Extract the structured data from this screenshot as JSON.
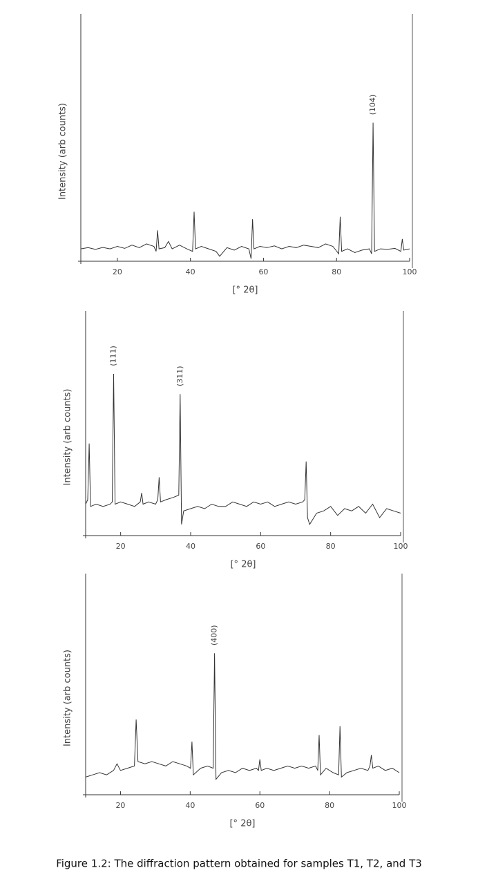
{
  "chart_data": [
    {
      "type": "line",
      "x_label": "[° 2θ]",
      "y_label": "Intensity (arb counts)",
      "color": "#333333",
      "xlim": [
        10,
        100
      ],
      "ylim": [
        0,
        100
      ],
      "xticks": [
        20,
        40,
        60,
        80,
        100
      ],
      "x": [
        10,
        12,
        14,
        16,
        18,
        20,
        22,
        24,
        26,
        28,
        30,
        30.6,
        31,
        31.4,
        33,
        34,
        35,
        37,
        39,
        40.6,
        41,
        41.4,
        43,
        45,
        47,
        48,
        50,
        52,
        54,
        56,
        56.6,
        57,
        57.4,
        59,
        61,
        63,
        65,
        67,
        69,
        71,
        73,
        75,
        77,
        79,
        80.6,
        81,
        81.4,
        83,
        85,
        87,
        89,
        89.6,
        90,
        90.4,
        92,
        94,
        96,
        97.6,
        98,
        98.4,
        100
      ],
      "values": [
        5,
        5.5,
        4.8,
        5.6,
        5,
        6,
        5.2,
        6.5,
        5.5,
        7,
        6,
        4,
        12.5,
        5,
        5.5,
        8,
        5,
        6.5,
        5,
        4,
        20,
        5,
        6,
        5,
        4,
        2,
        5.5,
        4.5,
        6,
        5,
        1,
        17,
        5,
        6,
        5.5,
        6.2,
        5,
        6,
        5.5,
        6.5,
        6,
        5.5,
        7,
        6,
        3,
        18,
        4,
        5,
        3.5,
        4.5,
        5,
        3,
        56,
        4,
        5,
        4.8,
        5.2,
        4,
        9,
        4.5,
        5
      ],
      "annotations": [
        {
          "text": "(104)",
          "x": 90,
          "y": 56
        }
      ]
    },
    {
      "type": "line",
      "x_label": "[° 2θ]",
      "y_label": "Intensity (arb counts)",
      "color": "#333333",
      "xlim": [
        10,
        100
      ],
      "ylim": [
        0,
        100
      ],
      "xticks": [
        20,
        40,
        60,
        80,
        100
      ],
      "x": [
        10,
        10.6,
        11,
        11.4,
        13,
        15,
        17,
        17.6,
        18,
        18.4,
        20,
        22,
        24,
        25.6,
        26,
        26.4,
        28,
        30,
        30.6,
        31,
        31.4,
        33,
        35,
        36.6,
        37,
        37.4,
        38,
        40,
        42,
        44,
        46,
        48,
        50,
        52,
        54,
        56,
        58,
        60,
        62,
        64,
        66,
        68,
        70,
        72,
        72.6,
        73,
        73.4,
        74,
        76,
        78,
        80,
        82,
        84,
        86,
        88,
        90,
        92,
        94,
        96,
        98,
        100
      ],
      "values": [
        14,
        16,
        41,
        13,
        14,
        13,
        14,
        15,
        72,
        14,
        15,
        14,
        13,
        15,
        19,
        14,
        15,
        14,
        16,
        26,
        15,
        16,
        17,
        18,
        63,
        5,
        11,
        12,
        13,
        12,
        14,
        13,
        13,
        15,
        14,
        13,
        15,
        14,
        15,
        13,
        14,
        15,
        14,
        15,
        16,
        33,
        8,
        5,
        10,
        11,
        13,
        9,
        12,
        11,
        13,
        10,
        14,
        8,
        12,
        11,
        10
      ],
      "annotations": [
        {
          "text": "(111)",
          "x": 18,
          "y": 72
        },
        {
          "text": "(311)",
          "x": 37,
          "y": 63
        }
      ]
    },
    {
      "type": "line",
      "x_label": "[° 2θ]",
      "y_label": "Intensity (arb counts)",
      "color": "#333333",
      "xlim": [
        10,
        100
      ],
      "ylim": [
        0,
        100
      ],
      "xticks": [
        20,
        40,
        60,
        80,
        100
      ],
      "x": [
        10,
        12,
        14,
        16,
        18,
        19,
        20,
        22,
        24,
        24.5,
        25,
        27,
        29,
        31,
        33,
        35,
        37,
        39,
        40.1,
        40.5,
        40.9,
        43,
        45,
        46.6,
        47,
        47.4,
        49,
        51,
        53,
        55,
        57,
        59,
        59.6,
        60,
        60.4,
        62,
        64,
        66,
        68,
        70,
        72,
        74,
        76,
        76.6,
        77,
        77.4,
        79,
        81,
        82.6,
        83,
        83.4,
        85,
        87,
        89,
        91,
        91.6,
        92,
        92.4,
        94,
        96,
        98,
        100
      ],
      "values": [
        8,
        9,
        10,
        9,
        11,
        14,
        11,
        12,
        13,
        34,
        15,
        14,
        15,
        14,
        13,
        15,
        14,
        13,
        12,
        24,
        9,
        12,
        13,
        12,
        64,
        7,
        10,
        11,
        10,
        12,
        11,
        12,
        11,
        16,
        11,
        12,
        11,
        12,
        13,
        12,
        13,
        12,
        13,
        11,
        27,
        9,
        12,
        10,
        9,
        31,
        8,
        10,
        11,
        12,
        11,
        13,
        18,
        12,
        13,
        11,
        12,
        10
      ],
      "annotations": [
        {
          "text": "(400)",
          "x": 47,
          "y": 64
        }
      ]
    }
  ],
  "caption": "Figure 1.2: The diffraction pattern obtained for samples T1, T2, and T3"
}
